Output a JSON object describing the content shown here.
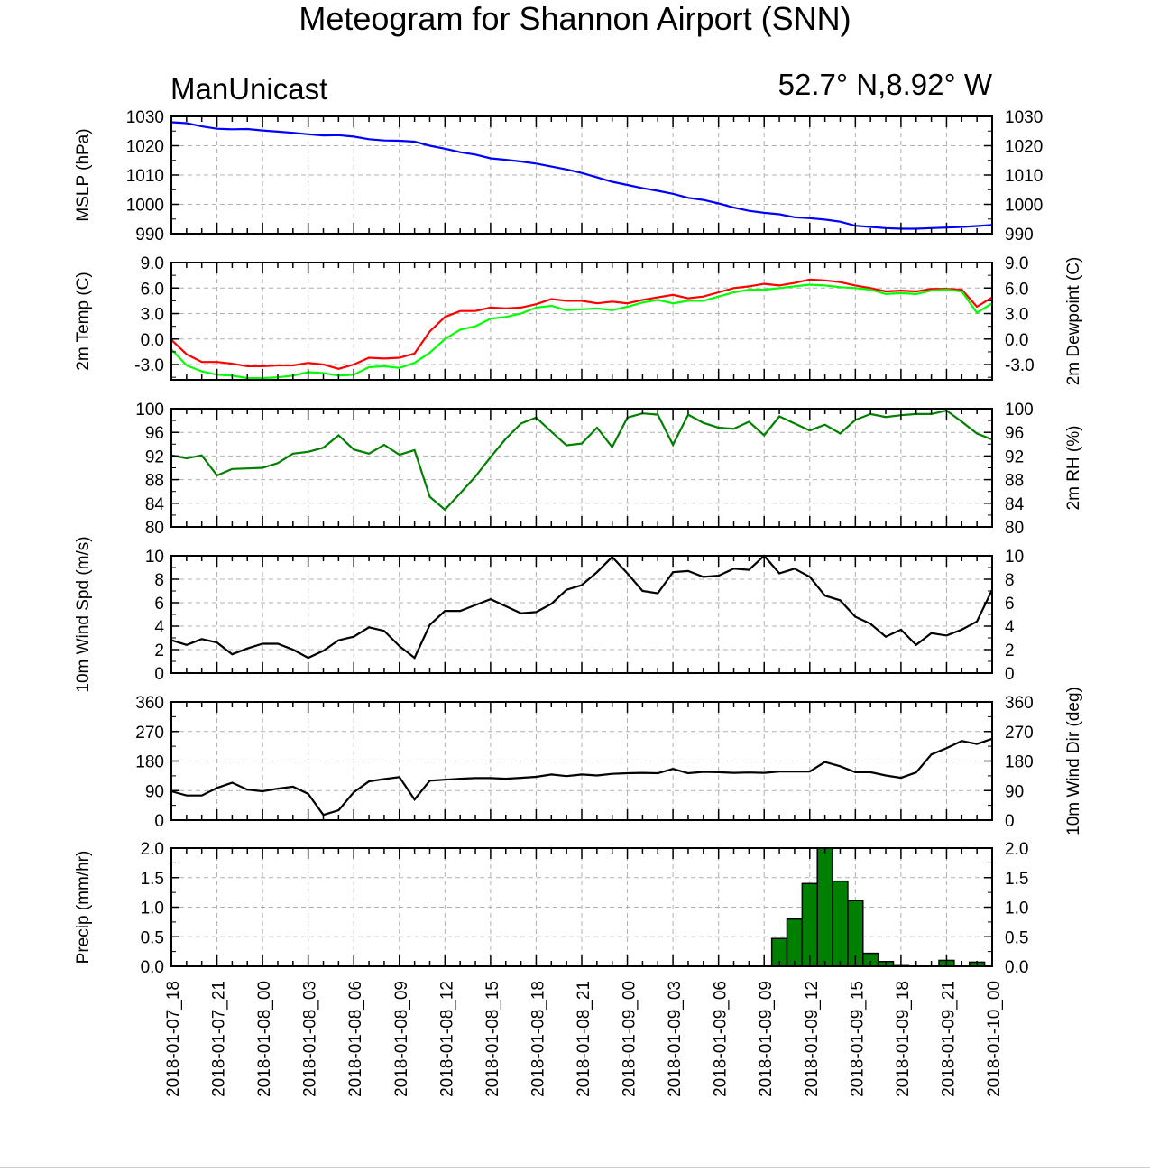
{
  "title": "Meteogram for Shannon Airport (SNN)",
  "subtitle_left": "ManUnicast",
  "subtitle_right": "52.7° N,8.92° W",
  "chart_data": [
    {
      "type": "line",
      "x": [
        "2018-01-07_18",
        "2018-01-07_19",
        "2018-01-07_20",
        "2018-01-07_21",
        "2018-01-07_22",
        "2018-01-07_23",
        "2018-01-08_00",
        "2018-01-08_01",
        "2018-01-08_02",
        "2018-01-08_03",
        "2018-01-08_04",
        "2018-01-08_05",
        "2018-01-08_06",
        "2018-01-08_07",
        "2018-01-08_08",
        "2018-01-08_09",
        "2018-01-08_10",
        "2018-01-08_11",
        "2018-01-08_12",
        "2018-01-08_13",
        "2018-01-08_14",
        "2018-01-08_15",
        "2018-01-08_16",
        "2018-01-08_17",
        "2018-01-08_18",
        "2018-01-08_19",
        "2018-01-08_20",
        "2018-01-08_21",
        "2018-01-08_22",
        "2018-01-08_23",
        "2018-01-09_00",
        "2018-01-09_01",
        "2018-01-09_02",
        "2018-01-09_03",
        "2018-01-09_04",
        "2018-01-09_05",
        "2018-01-09_06",
        "2018-01-09_07",
        "2018-01-09_08",
        "2018-01-09_09",
        "2018-01-09_10",
        "2018-01-09_11",
        "2018-01-09_12",
        "2018-01-09_13",
        "2018-01-09_14",
        "2018-01-09_15",
        "2018-01-09_16",
        "2018-01-09_17",
        "2018-01-09_18",
        "2018-01-09_19",
        "2018-01-09_20",
        "2018-01-09_21",
        "2018-01-09_22",
        "2018-01-09_23",
        "2018-01-10_00"
      ],
      "ylabel": "MSLP (hPa)",
      "ylim": [
        990,
        1030
      ],
      "yticks": [
        990,
        1000,
        1010,
        1020,
        1030
      ],
      "ytick_labels": [
        "990",
        "1000",
        "1010",
        "1020",
        "1030"
      ],
      "series": [
        {
          "color": "#0000ff",
          "values": [
            1028,
            1027.7,
            1026.6,
            1025.8,
            1025.6,
            1025.7,
            1025.2,
            1024.8,
            1024.4,
            1023.9,
            1023.5,
            1023.6,
            1023.1,
            1022.2,
            1021.8,
            1021.7,
            1021.4,
            1020,
            1019,
            1017.8,
            1017,
            1015.7,
            1015.2,
            1014.6,
            1013.9,
            1012.9,
            1011.9,
            1010.7,
            1009.2,
            1007.7,
            1006.6,
            1005.5,
            1004.6,
            1003.6,
            1002.2,
            1001.5,
            1000.3,
            998.9,
            997.8,
            997.1,
            996.6,
            995.6,
            995.3,
            994.8,
            994.1,
            992.7,
            992.3,
            991.9,
            991.7,
            991.7,
            991.9,
            992.1,
            992.3,
            992.6,
            993
          ]
        }
      ],
      "grid": true
    },
    {
      "type": "line",
      "ylabel": "2m Temp (C)",
      "ylabel_right": "2m Dewpoint (C)",
      "ylim": [
        -4.8,
        9.0
      ],
      "yticks": [
        -3,
        0,
        3,
        6,
        9
      ],
      "ytick_labels": [
        "-3.0",
        "0.0",
        "3.0",
        "6.0",
        "9.0"
      ],
      "series": [
        {
          "color": "#ff0000",
          "values": [
            -0.1,
            -1.8,
            -2.7,
            -2.7,
            -2.9,
            -3.2,
            -3.2,
            -3.1,
            -3.1,
            -2.8,
            -3.0,
            -3.5,
            -3.0,
            -2.2,
            -2.3,
            -2.2,
            -1.7,
            0.9,
            2.6,
            3.3,
            3.3,
            3.7,
            3.6,
            3.7,
            4.1,
            4.7,
            4.5,
            4.5,
            4.2,
            4.4,
            4.2,
            4.6,
            4.9,
            5.2,
            4.8,
            5.0,
            5.5,
            6.0,
            6.2,
            6.5,
            6.3,
            6.6,
            7.0,
            6.9,
            6.7,
            6.3,
            6.0,
            5.6,
            5.7,
            5.6,
            5.9,
            5.9,
            5.8,
            3.8,
            4.9
          ]
        },
        {
          "color": "#00ff00",
          "values": [
            -1.2,
            -3.1,
            -3.8,
            -4.2,
            -4.3,
            -4.6,
            -4.6,
            -4.5,
            -4.3,
            -3.9,
            -4.0,
            -4.3,
            -4.2,
            -3.3,
            -3.2,
            -3.4,
            -2.8,
            -1.6,
            0.0,
            1.1,
            1.5,
            2.4,
            2.6,
            3.0,
            3.7,
            3.9,
            3.4,
            3.5,
            3.6,
            3.4,
            3.8,
            4.3,
            4.6,
            4.2,
            4.5,
            4.5,
            5.0,
            5.5,
            5.8,
            5.8,
            6.0,
            6.2,
            6.4,
            6.3,
            6.1,
            6.0,
            5.8,
            5.3,
            5.4,
            5.3,
            5.7,
            5.8,
            5.6,
            3.1,
            4.2
          ]
        }
      ],
      "grid": true
    },
    {
      "type": "line",
      "ylabel_right": "2m RH (%)",
      "ylim": [
        80,
        100
      ],
      "yticks": [
        80,
        84,
        88,
        92,
        96,
        100
      ],
      "ytick_labels": [
        "80",
        "84",
        "88",
        "92",
        "96",
        "100"
      ],
      "series": [
        {
          "color": "#008000",
          "values": [
            92.1,
            91.6,
            92.1,
            88.7,
            89.8,
            89.9,
            90.0,
            90.8,
            92.4,
            92.7,
            93.4,
            95.5,
            93.1,
            92.4,
            93.9,
            92.2,
            93.0,
            85.1,
            82.9,
            85.7,
            88.5,
            91.8,
            94.9,
            97.5,
            98.5,
            96.1,
            93.8,
            94.1,
            96.8,
            93.5,
            98.5,
            99.2,
            99.0,
            93.9,
            99.0,
            97.6,
            96.8,
            96.6,
            97.8,
            95.5,
            98.7,
            97.5,
            96.3,
            97.3,
            95.8,
            98.1,
            99.1,
            98.6,
            98.9,
            99.1,
            99.1,
            99.7,
            97.8,
            95.8,
            94.8
          ]
        }
      ],
      "grid": true
    },
    {
      "type": "line",
      "ylabel": "10m Wind Spd (m/s)",
      "ylim": [
        0,
        10
      ],
      "yticks": [
        0,
        2,
        4,
        6,
        8,
        10
      ],
      "ytick_labels": [
        "0",
        "2",
        "4",
        "6",
        "8",
        "10"
      ],
      "series": [
        {
          "color": "#000000",
          "values": [
            2.8,
            2.4,
            2.9,
            2.6,
            1.6,
            2.1,
            2.5,
            2.5,
            2.0,
            1.3,
            1.9,
            2.8,
            3.1,
            3.9,
            3.6,
            2.3,
            1.3,
            4.1,
            5.3,
            5.3,
            5.8,
            6.3,
            5.7,
            5.1,
            5.2,
            5.9,
            7.1,
            7.5,
            8.6,
            9.9,
            8.5,
            7.0,
            6.8,
            8.6,
            8.7,
            8.2,
            8.3,
            8.9,
            8.8,
            10.0,
            8.5,
            8.9,
            8.2,
            6.6,
            6.2,
            4.8,
            4.2,
            3.1,
            3.7,
            2.4,
            3.4,
            3.2,
            3.7,
            4.4,
            7.1
          ]
        }
      ],
      "grid": true
    },
    {
      "type": "line",
      "ylabel_right": "10m Wind Dir (deg)",
      "ylim": [
        0,
        360
      ],
      "yticks": [
        0,
        90,
        180,
        270,
        360
      ],
      "ytick_labels": [
        "0",
        "90",
        "180",
        "270",
        "360"
      ],
      "series": [
        {
          "color": "#000000",
          "values": [
            88,
            75,
            75,
            98,
            114,
            93,
            88,
            96,
            102,
            80,
            16,
            30,
            85,
            118,
            125,
            131,
            63,
            120,
            123,
            126,
            128,
            128,
            126,
            129,
            132,
            139,
            134,
            139,
            136,
            141,
            143,
            144,
            143,
            156,
            143,
            147,
            146,
            144,
            145,
            144,
            148,
            148,
            148,
            177,
            164,
            146,
            146,
            136,
            129,
            145,
            200,
            219,
            241,
            232,
            248
          ]
        }
      ],
      "grid": true
    },
    {
      "type": "bar",
      "ylabel": "Precip (mm/hr)",
      "ylim": [
        0,
        2.0
      ],
      "yticks": [
        0,
        0.5,
        1.0,
        1.5,
        2.0
      ],
      "ytick_labels": [
        "0.0",
        "0.5",
        "1.0",
        "1.5",
        "2.0"
      ],
      "bar_color": "#008000",
      "values": [
        0,
        0,
        0,
        0,
        0,
        0,
        0,
        0,
        0,
        0,
        0,
        0,
        0,
        0,
        0,
        0,
        0,
        0,
        0,
        0,
        0,
        0,
        0,
        0,
        0,
        0,
        0,
        0,
        0,
        0,
        0,
        0,
        0,
        0,
        0,
        0,
        0,
        0,
        0,
        0,
        0.47,
        0.8,
        1.4,
        2.0,
        1.44,
        1.11,
        0.22,
        0.08,
        0.01,
        0,
        0,
        0.1,
        0,
        0.07,
        0
      ],
      "grid": true
    }
  ],
  "x_tick_labels": [
    "2018-01-07_18",
    "2018-01-07_21",
    "2018-01-08_00",
    "2018-01-08_03",
    "2018-01-08_06",
    "2018-01-08_09",
    "2018-01-08_12",
    "2018-01-08_15",
    "2018-01-08_18",
    "2018-01-08_21",
    "2018-01-09_00",
    "2018-01-09_03",
    "2018-01-09_06",
    "2018-01-09_09",
    "2018-01-09_12",
    "2018-01-09_15",
    "2018-01-09_18",
    "2018-01-09_21",
    "2018-01-10_00"
  ]
}
